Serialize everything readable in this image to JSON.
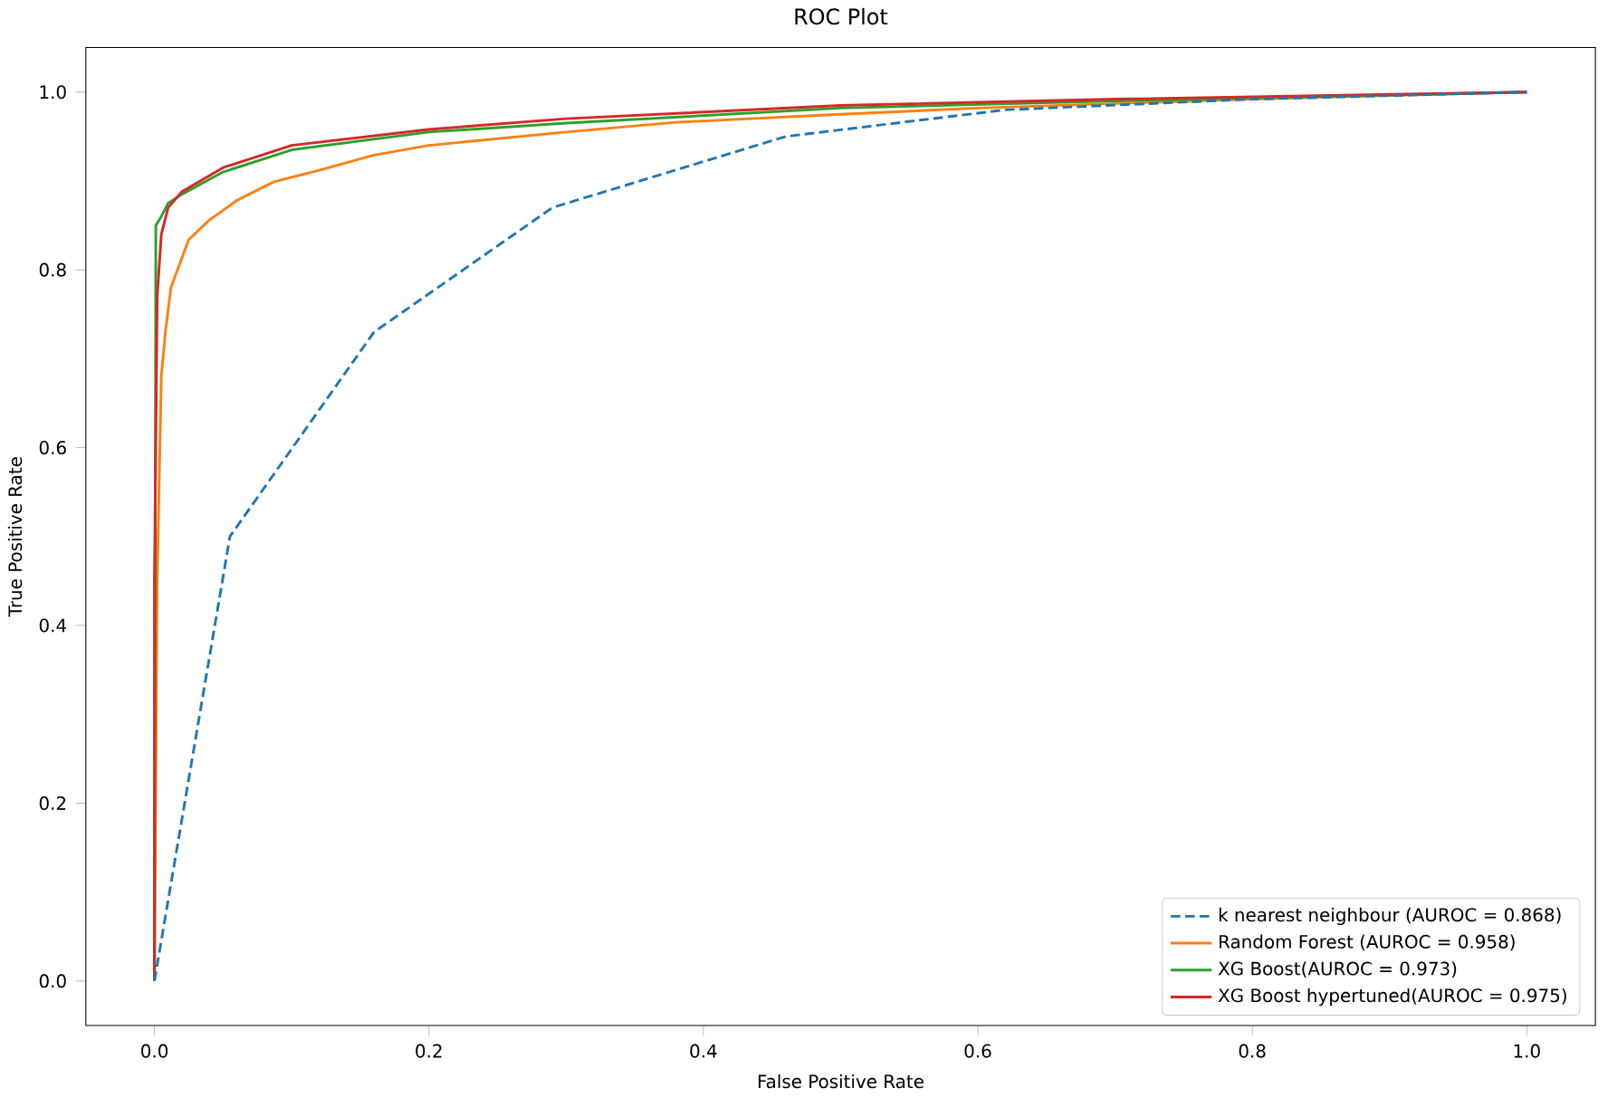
{
  "chart_data": {
    "type": "line",
    "title": "ROC Plot",
    "xlabel": "False Positive Rate",
    "ylabel": "True Positive Rate",
    "xlim": [
      -0.05,
      1.05
    ],
    "ylim": [
      -0.05,
      1.05
    ],
    "xticks": [
      {
        "value": 0,
        "label": "0.0"
      },
      0.2,
      0.4,
      0.6,
      0.8,
      {
        "value": 1,
        "label": "1.0"
      }
    ],
    "yticks": [
      {
        "value": 0,
        "label": "0.0"
      },
      0.2,
      0.4,
      0.6,
      0.8,
      {
        "value": 1,
        "label": "1.0"
      }
    ],
    "legend": "bottom right",
    "series": [
      {
        "name": "k nearest neighbour (AUROC = 0.868)",
        "color": "#1f77b4",
        "line_style": "dashed",
        "x": [
          0,
          0.055,
          0.16,
          0.29,
          0.46,
          0.62,
          0.8,
          1
        ],
        "values": [
          0,
          0.5,
          0.73,
          0.87,
          0.95,
          0.98,
          0.992,
          1
        ]
      },
      {
        "name": "Random Forest (AUROC = 0.958)",
        "color": "#ff7f0e",
        "x": [
          0,
          0.002,
          0.005,
          0.008,
          0.012,
          0.025,
          0.04,
          0.06,
          0.087,
          0.12,
          0.16,
          0.2,
          0.3,
          0.38,
          0.5,
          0.6,
          0.8,
          1
        ],
        "values": [
          0,
          0.45,
          0.68,
          0.73,
          0.78,
          0.834,
          0.856,
          0.878,
          0.899,
          0.912,
          0.929,
          0.94,
          0.955,
          0.966,
          0.975,
          0.982,
          0.992,
          1
        ]
      },
      {
        "name": "XG Boost(AUROC = 0.973)",
        "color": "#2ca02c",
        "x": [
          0,
          0.001,
          0.005,
          0.01,
          0.02,
          0.05,
          0.1,
          0.2,
          0.3,
          0.5,
          0.7,
          1
        ],
        "values": [
          0,
          0.85,
          0.86,
          0.875,
          0.885,
          0.91,
          0.935,
          0.955,
          0.965,
          0.982,
          0.99,
          1
        ]
      },
      {
        "name": "XG Boost hypertuned(AUROC = 0.975)",
        "color": "#d62728",
        "x": [
          0,
          0,
          0.002,
          0.005,
          0.01,
          0.02,
          0.05,
          0.1,
          0.2,
          0.3,
          0.5,
          0.7,
          1
        ],
        "values": [
          0,
          0.45,
          0.77,
          0.84,
          0.87,
          0.888,
          0.915,
          0.94,
          0.958,
          0.97,
          0.985,
          0.992,
          1
        ]
      }
    ]
  }
}
